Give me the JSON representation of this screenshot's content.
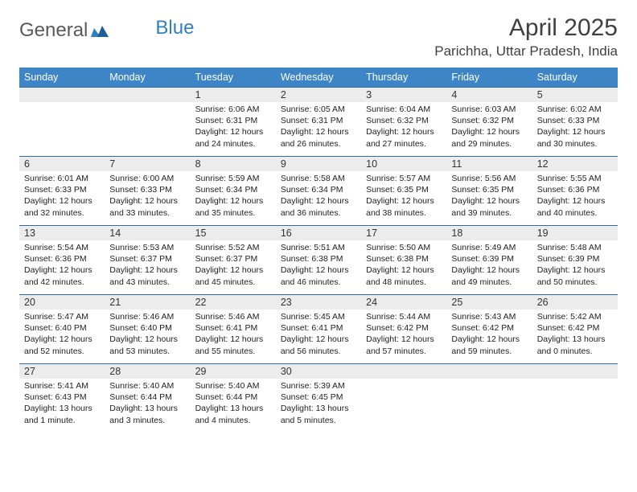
{
  "logo": {
    "word1": "General",
    "word2": "Blue"
  },
  "title": "April 2025",
  "location": "Parichha, Uttar Pradesh, India",
  "colors": {
    "header_bg": "#3d85c6",
    "header_text": "#ffffff",
    "daynum_bg": "#ececec",
    "cell_border": "#2f6aa3",
    "logo_grey": "#5a5a5a",
    "logo_blue": "#2f7fc1"
  },
  "day_headers": [
    "Sunday",
    "Monday",
    "Tuesday",
    "Wednesday",
    "Thursday",
    "Friday",
    "Saturday"
  ],
  "weeks": [
    [
      null,
      null,
      {
        "n": "1",
        "sr": "6:06 AM",
        "ss": "6:31 PM",
        "dl": "12 hours and 24 minutes."
      },
      {
        "n": "2",
        "sr": "6:05 AM",
        "ss": "6:31 PM",
        "dl": "12 hours and 26 minutes."
      },
      {
        "n": "3",
        "sr": "6:04 AM",
        "ss": "6:32 PM",
        "dl": "12 hours and 27 minutes."
      },
      {
        "n": "4",
        "sr": "6:03 AM",
        "ss": "6:32 PM",
        "dl": "12 hours and 29 minutes."
      },
      {
        "n": "5",
        "sr": "6:02 AM",
        "ss": "6:33 PM",
        "dl": "12 hours and 30 minutes."
      }
    ],
    [
      {
        "n": "6",
        "sr": "6:01 AM",
        "ss": "6:33 PM",
        "dl": "12 hours and 32 minutes."
      },
      {
        "n": "7",
        "sr": "6:00 AM",
        "ss": "6:33 PM",
        "dl": "12 hours and 33 minutes."
      },
      {
        "n": "8",
        "sr": "5:59 AM",
        "ss": "6:34 PM",
        "dl": "12 hours and 35 minutes."
      },
      {
        "n": "9",
        "sr": "5:58 AM",
        "ss": "6:34 PM",
        "dl": "12 hours and 36 minutes."
      },
      {
        "n": "10",
        "sr": "5:57 AM",
        "ss": "6:35 PM",
        "dl": "12 hours and 38 minutes."
      },
      {
        "n": "11",
        "sr": "5:56 AM",
        "ss": "6:35 PM",
        "dl": "12 hours and 39 minutes."
      },
      {
        "n": "12",
        "sr": "5:55 AM",
        "ss": "6:36 PM",
        "dl": "12 hours and 40 minutes."
      }
    ],
    [
      {
        "n": "13",
        "sr": "5:54 AM",
        "ss": "6:36 PM",
        "dl": "12 hours and 42 minutes."
      },
      {
        "n": "14",
        "sr": "5:53 AM",
        "ss": "6:37 PM",
        "dl": "12 hours and 43 minutes."
      },
      {
        "n": "15",
        "sr": "5:52 AM",
        "ss": "6:37 PM",
        "dl": "12 hours and 45 minutes."
      },
      {
        "n": "16",
        "sr": "5:51 AM",
        "ss": "6:38 PM",
        "dl": "12 hours and 46 minutes."
      },
      {
        "n": "17",
        "sr": "5:50 AM",
        "ss": "6:38 PM",
        "dl": "12 hours and 48 minutes."
      },
      {
        "n": "18",
        "sr": "5:49 AM",
        "ss": "6:39 PM",
        "dl": "12 hours and 49 minutes."
      },
      {
        "n": "19",
        "sr": "5:48 AM",
        "ss": "6:39 PM",
        "dl": "12 hours and 50 minutes."
      }
    ],
    [
      {
        "n": "20",
        "sr": "5:47 AM",
        "ss": "6:40 PM",
        "dl": "12 hours and 52 minutes."
      },
      {
        "n": "21",
        "sr": "5:46 AM",
        "ss": "6:40 PM",
        "dl": "12 hours and 53 minutes."
      },
      {
        "n": "22",
        "sr": "5:46 AM",
        "ss": "6:41 PM",
        "dl": "12 hours and 55 minutes."
      },
      {
        "n": "23",
        "sr": "5:45 AM",
        "ss": "6:41 PM",
        "dl": "12 hours and 56 minutes."
      },
      {
        "n": "24",
        "sr": "5:44 AM",
        "ss": "6:42 PM",
        "dl": "12 hours and 57 minutes."
      },
      {
        "n": "25",
        "sr": "5:43 AM",
        "ss": "6:42 PM",
        "dl": "12 hours and 59 minutes."
      },
      {
        "n": "26",
        "sr": "5:42 AM",
        "ss": "6:42 PM",
        "dl": "13 hours and 0 minutes."
      }
    ],
    [
      {
        "n": "27",
        "sr": "5:41 AM",
        "ss": "6:43 PM",
        "dl": "13 hours and 1 minute."
      },
      {
        "n": "28",
        "sr": "5:40 AM",
        "ss": "6:44 PM",
        "dl": "13 hours and 3 minutes."
      },
      {
        "n": "29",
        "sr": "5:40 AM",
        "ss": "6:44 PM",
        "dl": "13 hours and 4 minutes."
      },
      {
        "n": "30",
        "sr": "5:39 AM",
        "ss": "6:45 PM",
        "dl": "13 hours and 5 minutes."
      },
      null,
      null,
      null
    ]
  ],
  "labels": {
    "sunrise": "Sunrise: ",
    "sunset": "Sunset: ",
    "daylight": "Daylight: "
  }
}
